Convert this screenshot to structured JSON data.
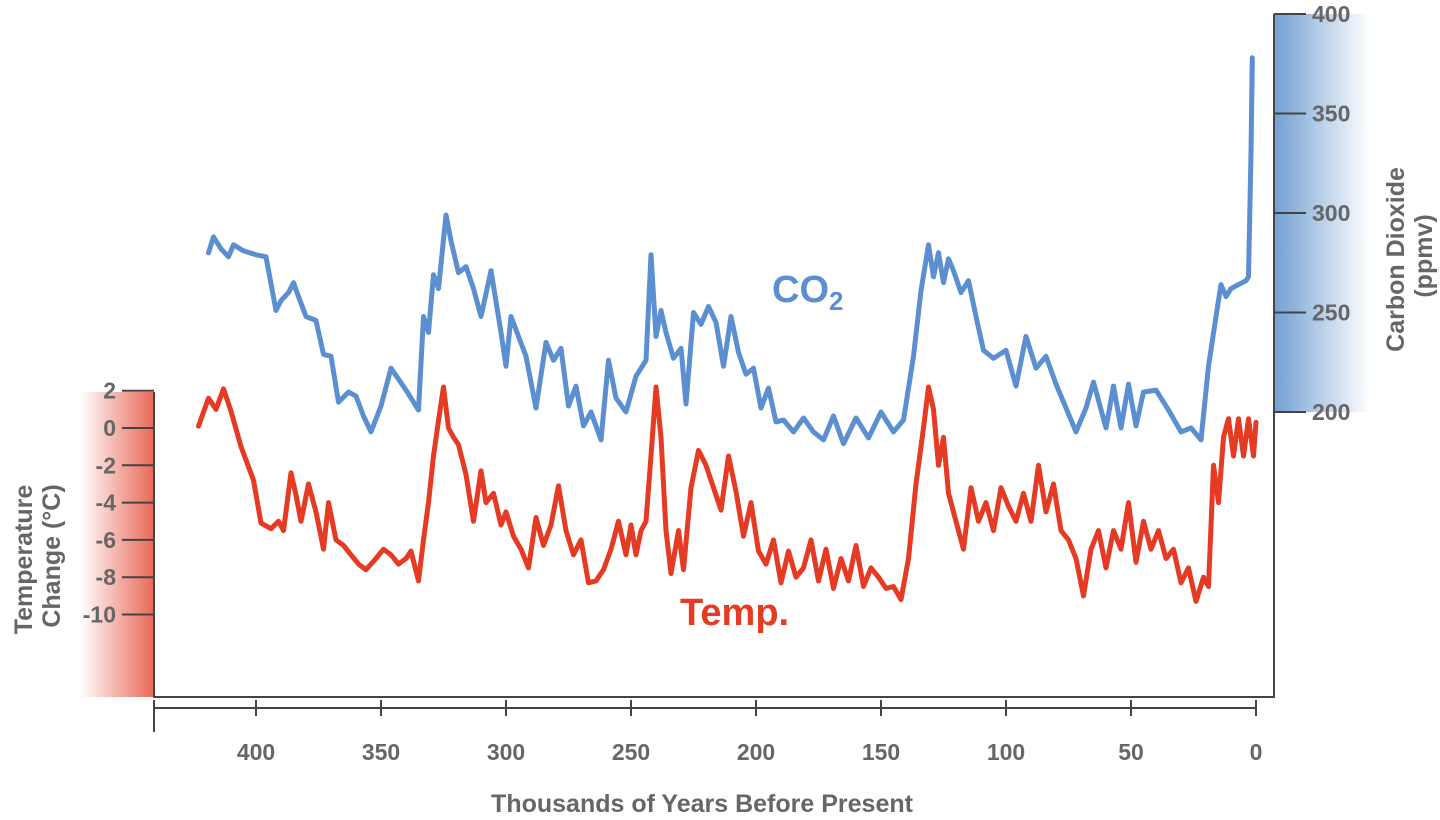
{
  "chart_data": {
    "type": "line",
    "title": "",
    "xlabel": "Thousands of Years Before Present",
    "x_axis": {
      "range": [
        440,
        0
      ],
      "ticks": [
        400,
        350,
        300,
        250,
        200,
        150,
        100,
        50,
        0
      ],
      "tick_labels": [
        "400",
        "350",
        "300",
        "250",
        "200",
        "150",
        "100",
        "50",
        "0"
      ],
      "reversed": true
    },
    "y_axes": {
      "left": {
        "label_lines": [
          "Temperature",
          "Change (°C)"
        ],
        "range": [
          -10,
          2
        ],
        "ticks": [
          2,
          0,
          -2,
          -4,
          -6,
          -8,
          -10
        ],
        "tick_labels": [
          "2",
          "0",
          "-2",
          "-4",
          "-6",
          "-8",
          "-10"
        ],
        "color": "#e8604d"
      },
      "right": {
        "label_lines": [
          "Carbon Dioxide",
          "(ppmv)"
        ],
        "range": [
          200,
          400
        ],
        "ticks": [
          400,
          350,
          300,
          250,
          200
        ],
        "tick_labels": [
          "400",
          "350",
          "300",
          "250",
          "200"
        ],
        "color": "#6b9bd1"
      }
    },
    "grid": false,
    "series": [
      {
        "name": "CO2",
        "label_main": "CO",
        "label_sub": "2",
        "axis": "right",
        "color": "#5b8fd0",
        "x": [
          419,
          417,
          414,
          411,
          409,
          405,
          400,
          396,
          392,
          390,
          387,
          385,
          383,
          380,
          376,
          373,
          370,
          367,
          363,
          360,
          357,
          354,
          350,
          346,
          340,
          335,
          333,
          331,
          329,
          327,
          324,
          322,
          319,
          316,
          313,
          310,
          306,
          302,
          300,
          298,
          295,
          292,
          288,
          284,
          281,
          278,
          275,
          272,
          269,
          266,
          262,
          259,
          256,
          252,
          248,
          244,
          242,
          240,
          238,
          236,
          233,
          230,
          228,
          225,
          222,
          219,
          216,
          213,
          210,
          207,
          204,
          201,
          198,
          195,
          192,
          189,
          185,
          181,
          177,
          173,
          169,
          165,
          160,
          155,
          150,
          145,
          141,
          137,
          134,
          131,
          129,
          127,
          125,
          123,
          121,
          118,
          115,
          112,
          109,
          105,
          100,
          96,
          92,
          88,
          84,
          80,
          76,
          72,
          68,
          65,
          60,
          57,
          54,
          51,
          48,
          45,
          40,
          35,
          30,
          26,
          22,
          19,
          16,
          14,
          12,
          10,
          7,
          4,
          3,
          2,
          1.5
        ],
        "y": [
          280,
          288,
          282,
          278,
          284,
          281,
          279,
          278,
          251,
          256,
          260,
          265,
          258,
          248,
          246,
          229,
          228,
          205,
          210,
          208,
          198,
          190,
          203,
          222,
          211,
          201,
          248,
          240,
          269,
          262,
          299,
          286,
          270,
          273,
          262,
          248,
          271,
          240,
          223,
          248,
          238,
          228,
          202,
          235,
          226,
          232,
          203,
          213,
          193,
          200,
          186,
          226,
          207,
          200,
          218,
          226,
          279,
          238,
          251,
          240,
          227,
          232,
          204,
          250,
          244,
          253,
          245,
          223,
          248,
          230,
          219,
          222,
          202,
          212,
          195,
          196,
          190,
          197,
          190,
          186,
          198,
          184,
          197,
          187,
          200,
          190,
          196,
          228,
          261,
          284,
          268,
          280,
          265,
          277,
          271,
          260,
          266,
          248,
          231,
          227,
          231,
          213,
          238,
          222,
          228,
          214,
          202,
          190,
          202,
          215,
          192,
          213,
          192,
          214,
          193,
          210,
          211,
          201,
          190,
          192,
          186,
          223,
          248,
          264,
          258,
          262,
          264,
          266,
          268,
          330,
          378
        ]
      },
      {
        "name": "Temp.",
        "axis": "left",
        "color": "#e53a23",
        "x": [
          423,
          419,
          416,
          413,
          410,
          406,
          401,
          398,
          394,
          391,
          389,
          386,
          384,
          382,
          379,
          376,
          373,
          371,
          368,
          365,
          362,
          359,
          356,
          352,
          349,
          346,
          343,
          340,
          338,
          335,
          333,
          331,
          329,
          327,
          325,
          323,
          321,
          319,
          316,
          313,
          310,
          308,
          305,
          302,
          300,
          297,
          294,
          291,
          288,
          285,
          282,
          279,
          276,
          273,
          270,
          267,
          264,
          261,
          258,
          255,
          252,
          250,
          248,
          246,
          244,
          242,
          240,
          238,
          236,
          234,
          231,
          229,
          226,
          223,
          220,
          217,
          214,
          211,
          208,
          205,
          202,
          199,
          196,
          193,
          190,
          187,
          184,
          181,
          178,
          175,
          172,
          169,
          166,
          163,
          160,
          157,
          154,
          151,
          148,
          145,
          142,
          139,
          136,
          133,
          131,
          129,
          127,
          125,
          123,
          120,
          117,
          114,
          111,
          108,
          105,
          102,
          99,
          96,
          93,
          90,
          87,
          84,
          81,
          78,
          75,
          72,
          69,
          66,
          63,
          60,
          57,
          54,
          51,
          48,
          45,
          42,
          39,
          36,
          33,
          30,
          27,
          24,
          21,
          19,
          17,
          15,
          13,
          11,
          9,
          7,
          5,
          3,
          1,
          0
        ],
        "y": [
          0.1,
          1.6,
          1.0,
          2.1,
          0.9,
          -1.0,
          -2.8,
          -5.1,
          -5.4,
          -5.0,
          -5.5,
          -2.4,
          -3.6,
          -5.0,
          -3.0,
          -4.5,
          -6.5,
          -4.0,
          -6.0,
          -6.3,
          -6.8,
          -7.3,
          -7.6,
          -7.0,
          -6.5,
          -6.8,
          -7.3,
          -7.0,
          -6.6,
          -8.2,
          -6.0,
          -4.0,
          -1.5,
          0.4,
          2.2,
          0.0,
          -0.5,
          -0.9,
          -2.5,
          -5.0,
          -2.3,
          -4.0,
          -3.5,
          -5.2,
          -4.5,
          -5.8,
          -6.5,
          -7.5,
          -4.8,
          -6.3,
          -5.2,
          -3.1,
          -5.5,
          -6.8,
          -6.0,
          -8.3,
          -8.2,
          -7.6,
          -6.5,
          -5.0,
          -6.8,
          -5.2,
          -6.8,
          -5.5,
          -5.0,
          -1.5,
          2.2,
          -0.5,
          -5.5,
          -7.8,
          -5.5,
          -7.6,
          -3.2,
          -1.2,
          -2.0,
          -3.2,
          -4.4,
          -1.5,
          -3.4,
          -5.8,
          -4.0,
          -6.6,
          -7.3,
          -6.0,
          -8.3,
          -6.6,
          -8.0,
          -7.5,
          -6.0,
          -8.2,
          -6.5,
          -8.6,
          -7.0,
          -8.2,
          -6.3,
          -8.5,
          -7.5,
          -8.0,
          -8.6,
          -8.5,
          -9.2,
          -7.0,
          -3.0,
          0.0,
          2.2,
          1.0,
          -2.0,
          -0.5,
          -3.5,
          -5.0,
          -6.5,
          -3.2,
          -5.0,
          -4.0,
          -5.5,
          -3.2,
          -4.2,
          -5.0,
          -3.5,
          -5.0,
          -2.0,
          -4.5,
          -3.0,
          -5.5,
          -6.0,
          -7.0,
          -9.0,
          -6.5,
          -5.5,
          -7.5,
          -5.5,
          -6.5,
          -4.0,
          -7.2,
          -5.0,
          -6.5,
          -5.5,
          -7.0,
          -6.5,
          -8.3,
          -7.5,
          -9.3,
          -8.0,
          -8.5,
          -2.0,
          -4.0,
          -0.5,
          0.5,
          -1.5,
          0.5,
          -1.5,
          0.5,
          -1.5,
          0.3
        ]
      }
    ]
  }
}
